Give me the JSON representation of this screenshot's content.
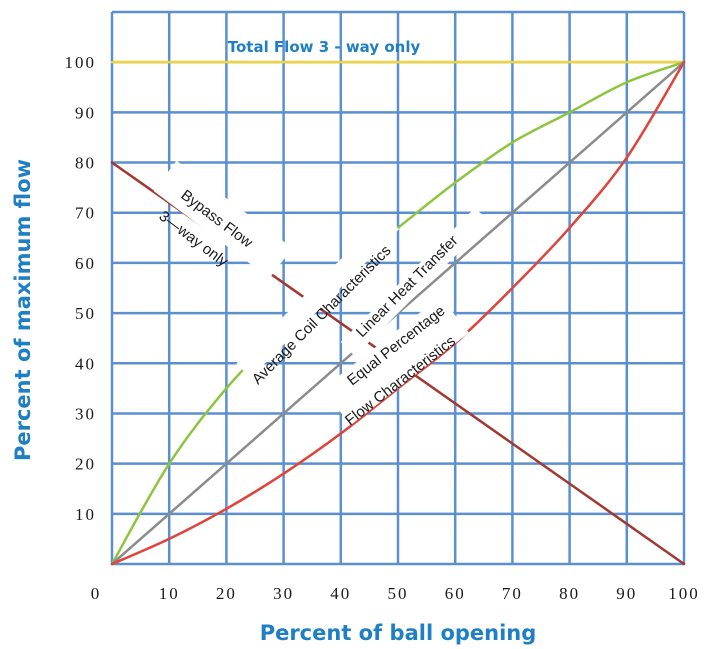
{
  "chart_data": {
    "type": "line",
    "xlabel": "Percent of ball opening",
    "ylabel": "Percent of maximum flow",
    "xlim": [
      0,
      100
    ],
    "ylim": [
      0,
      100
    ],
    "x_ticks": [
      "0",
      "10",
      "20",
      "30",
      "40",
      "50",
      "60",
      "70",
      "80",
      "90",
      "100"
    ],
    "y_ticks": [
      "10",
      "20",
      "30",
      "40",
      "50",
      "60",
      "70",
      "80",
      "90",
      "100"
    ],
    "grid": true,
    "series": [
      {
        "name": "Total Flow 3 - way only",
        "color": "#f0d43a",
        "x": [
          0,
          100
        ],
        "y": [
          100,
          100
        ]
      },
      {
        "name": "Average Coil Characteristics",
        "color": "#8cc63f",
        "x": [
          0,
          10,
          20,
          30,
          40,
          50,
          60,
          70,
          80,
          90,
          100
        ],
        "y": [
          0,
          20,
          35,
          47,
          58,
          67,
          76,
          84,
          90,
          96,
          100
        ]
      },
      {
        "name": "Linear Heat Transfer",
        "color": "#8c8c8c",
        "x": [
          0,
          100
        ],
        "y": [
          0,
          100
        ]
      },
      {
        "name": "Equal Percentage Flow Characteristics",
        "color": "#e0433a",
        "x": [
          0,
          10,
          20,
          30,
          40,
          50,
          60,
          70,
          80,
          90,
          100
        ],
        "y": [
          0,
          5,
          11,
          18,
          26,
          35,
          44,
          55,
          67,
          81,
          100
        ]
      },
      {
        "name": "Bypass Flow 3—way only",
        "color": "#a0392f",
        "x": [
          0,
          100
        ],
        "y": [
          80,
          0
        ]
      }
    ],
    "labels": {
      "total": "Total Flow 3 - way only",
      "bypass_1": "Bypass Flow",
      "bypass_2": "3—way only",
      "coil": "Average Coil Characteristics",
      "linear": "Linear Heat Transfer",
      "equal_1": "Equal Percentage",
      "equal_2": "Flow Characteristics"
    },
    "colors": {
      "grid": "#5b8fd0",
      "axis_title": "#1f7fc4"
    }
  }
}
